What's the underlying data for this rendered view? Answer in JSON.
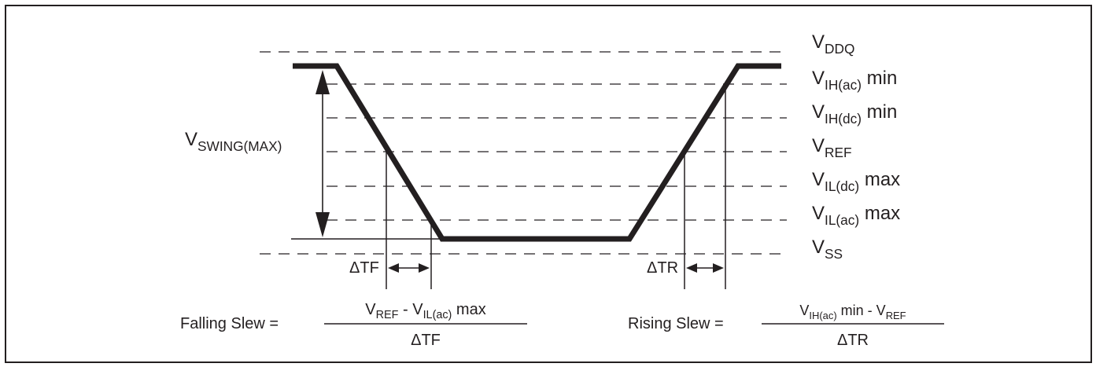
{
  "levels": [
    {
      "base": "V",
      "sub": "DDQ",
      "suffix": ""
    },
    {
      "base": "V",
      "sub": "IH(ac)",
      "suffix": " min"
    },
    {
      "base": "V",
      "sub": "IH(dc)",
      "suffix": " min"
    },
    {
      "base": "V",
      "sub": "REF",
      "suffix": ""
    },
    {
      "base": "V",
      "sub": "IL(dc)",
      "suffix": " max"
    },
    {
      "base": "V",
      "sub": "IL(ac)",
      "suffix": " max"
    },
    {
      "base": "V",
      "sub": "SS",
      "suffix": ""
    }
  ],
  "swing": {
    "base": "V",
    "sub": "SWING(MAX)"
  },
  "delta_tf": "ΔTF",
  "delta_tr": "ΔTR",
  "falling": {
    "label": "Falling Slew =",
    "num_a_base": "V",
    "num_a_sub": "REF",
    "num_mid": " - ",
    "num_b_base": "V",
    "num_b_sub": "IL(ac)",
    "num_b_suffix": " max",
    "den": "ΔTF"
  },
  "rising": {
    "label": "Rising Slew =",
    "num_a_base": "V",
    "num_a_sub": "IH(ac)",
    "num_a_suffix": " min - ",
    "num_b_base": "V",
    "num_b_sub": "REF",
    "den": "ΔTR"
  },
  "colors": {
    "ink": "#231f20",
    "background": "#ffffff"
  }
}
